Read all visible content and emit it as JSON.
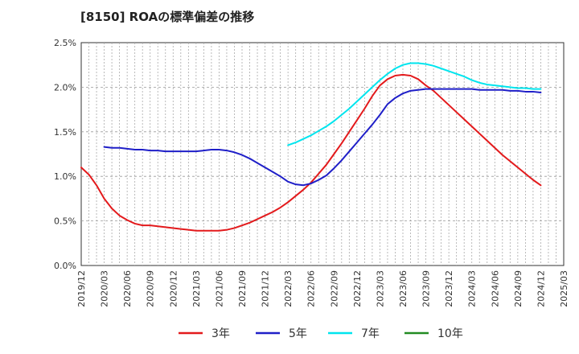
{
  "title": "[8150]  ROAの標準偏差の推移",
  "chart_data": {
    "type": "line",
    "title": "[8150]  ROAの標準偏差の推移",
    "xlabel": "",
    "ylabel": "",
    "x_ticks": [
      "2019/12",
      "2020/03",
      "2020/06",
      "2020/09",
      "2020/12",
      "2021/03",
      "2021/06",
      "2021/09",
      "2021/12",
      "2022/03",
      "2022/06",
      "2022/09",
      "2022/12",
      "2023/03",
      "2023/06",
      "2023/09",
      "2023/12",
      "2024/03",
      "2024/06",
      "2024/09",
      "2024/12",
      "2025/03"
    ],
    "y_ticks": [
      "0.0%",
      "0.5%",
      "1.0%",
      "1.5%",
      "2.0%",
      "2.5%"
    ],
    "ylim": [
      0,
      2.5
    ],
    "y_unit": "%",
    "grid": true,
    "legend_position": "bottom",
    "series": [
      {
        "name": "3年",
        "color": "#e31a1c",
        "x": [
          "2019/12",
          "2020/01",
          "2020/02",
          "2020/03",
          "2020/04",
          "2020/05",
          "2020/06",
          "2020/07",
          "2020/08",
          "2020/09",
          "2020/10",
          "2020/11",
          "2020/12",
          "2021/01",
          "2021/02",
          "2021/03",
          "2021/04",
          "2021/05",
          "2021/06",
          "2021/07",
          "2021/08",
          "2021/09",
          "2021/10",
          "2021/11",
          "2021/12",
          "2022/01",
          "2022/02",
          "2022/03",
          "2022/04",
          "2022/05",
          "2022/06",
          "2022/07",
          "2022/08",
          "2022/09",
          "2022/10",
          "2022/11",
          "2022/12",
          "2023/01",
          "2023/02",
          "2023/03",
          "2023/04",
          "2023/05",
          "2023/06",
          "2023/07",
          "2023/08",
          "2023/09",
          "2023/10",
          "2023/11",
          "2023/12",
          "2024/01",
          "2024/02",
          "2024/03",
          "2024/04",
          "2024/05",
          "2024/06",
          "2024/07",
          "2024/08",
          "2024/09",
          "2024/10",
          "2024/11",
          "2024/12"
        ],
        "values": [
          1.1,
          1.02,
          0.9,
          0.75,
          0.64,
          0.56,
          0.51,
          0.47,
          0.45,
          0.45,
          0.44,
          0.43,
          0.42,
          0.41,
          0.4,
          0.39,
          0.39,
          0.39,
          0.39,
          0.4,
          0.42,
          0.45,
          0.48,
          0.52,
          0.56,
          0.6,
          0.65,
          0.71,
          0.78,
          0.85,
          0.93,
          1.03,
          1.13,
          1.25,
          1.37,
          1.5,
          1.63,
          1.76,
          1.9,
          2.02,
          2.09,
          2.13,
          2.14,
          2.13,
          2.09,
          2.02,
          1.96,
          1.88,
          1.8,
          1.72,
          1.64,
          1.56,
          1.48,
          1.4,
          1.32,
          1.24,
          1.17,
          1.1,
          1.03,
          0.96,
          0.9
        ]
      },
      {
        "name": "5年",
        "color": "#1f1fc8",
        "x": [
          "2020/03",
          "2020/04",
          "2020/05",
          "2020/06",
          "2020/07",
          "2020/08",
          "2020/09",
          "2020/10",
          "2020/11",
          "2020/12",
          "2021/01",
          "2021/02",
          "2021/03",
          "2021/04",
          "2021/05",
          "2021/06",
          "2021/07",
          "2021/08",
          "2021/09",
          "2021/10",
          "2021/11",
          "2021/12",
          "2022/01",
          "2022/02",
          "2022/03",
          "2022/04",
          "2022/05",
          "2022/06",
          "2022/07",
          "2022/08",
          "2022/09",
          "2022/10",
          "2022/11",
          "2022/12",
          "2023/01",
          "2023/02",
          "2023/03",
          "2023/04",
          "2023/05",
          "2023/06",
          "2023/07",
          "2023/08",
          "2023/09",
          "2023/10",
          "2023/11",
          "2023/12",
          "2024/01",
          "2024/02",
          "2024/03",
          "2024/04",
          "2024/05",
          "2024/06",
          "2024/07",
          "2024/08",
          "2024/09",
          "2024/10",
          "2024/11",
          "2024/12"
        ],
        "values": [
          1.33,
          1.32,
          1.32,
          1.31,
          1.3,
          1.3,
          1.29,
          1.29,
          1.28,
          1.28,
          1.28,
          1.28,
          1.28,
          1.29,
          1.3,
          1.3,
          1.29,
          1.27,
          1.24,
          1.2,
          1.15,
          1.1,
          1.05,
          1.0,
          0.94,
          0.91,
          0.9,
          0.92,
          0.96,
          1.01,
          1.09,
          1.18,
          1.28,
          1.38,
          1.48,
          1.58,
          1.69,
          1.81,
          1.88,
          1.93,
          1.96,
          1.97,
          1.98,
          1.98,
          1.98,
          1.98,
          1.98,
          1.98,
          1.98,
          1.97,
          1.97,
          1.97,
          1.97,
          1.96,
          1.96,
          1.95,
          1.95,
          1.94
        ]
      },
      {
        "name": "7年",
        "color": "#00e5ee",
        "x": [
          "2022/03",
          "2022/04",
          "2022/05",
          "2022/06",
          "2022/07",
          "2022/08",
          "2022/09",
          "2022/10",
          "2022/11",
          "2022/12",
          "2023/01",
          "2023/02",
          "2023/03",
          "2023/04",
          "2023/05",
          "2023/06",
          "2023/07",
          "2023/08",
          "2023/09",
          "2023/10",
          "2023/11",
          "2023/12",
          "2024/01",
          "2024/02",
          "2024/03",
          "2024/04",
          "2024/05",
          "2024/06",
          "2024/07",
          "2024/08",
          "2024/09",
          "2024/10",
          "2024/11",
          "2024/12"
        ],
        "values": [
          1.35,
          1.38,
          1.42,
          1.46,
          1.51,
          1.56,
          1.62,
          1.69,
          1.76,
          1.84,
          1.92,
          2.0,
          2.08,
          2.15,
          2.21,
          2.25,
          2.27,
          2.27,
          2.26,
          2.24,
          2.21,
          2.18,
          2.15,
          2.12,
          2.08,
          2.05,
          2.03,
          2.02,
          2.01,
          2.0,
          1.99,
          1.99,
          1.98,
          1.98
        ]
      },
      {
        "name": "10年",
        "color": "#228b22",
        "x": [],
        "values": []
      }
    ]
  }
}
